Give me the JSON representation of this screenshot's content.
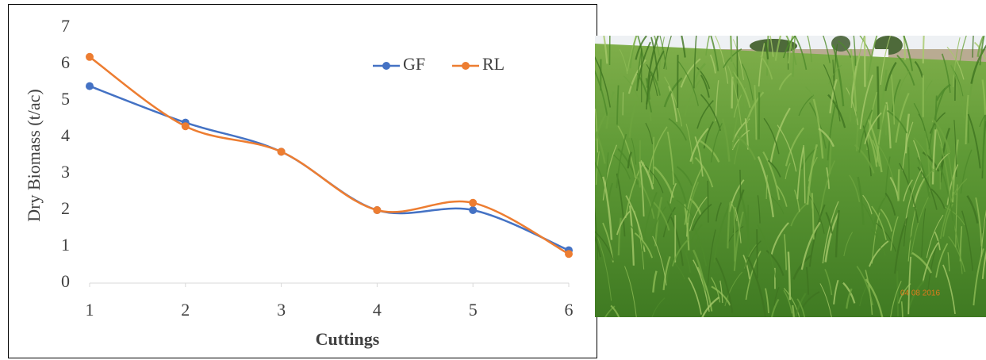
{
  "chart_data": {
    "type": "line",
    "x_label": "Cuttings",
    "y_label": "Dry Biomass (t/ac)",
    "x": [
      1,
      2,
      3,
      4,
      5,
      6
    ],
    "series": [
      {
        "name": "GF",
        "color": "#4472c4",
        "values": [
          5.4,
          4.4,
          3.6,
          2.0,
          2.0,
          0.9
        ]
      },
      {
        "name": "RL",
        "color": "#ed7d31",
        "values": [
          6.2,
          4.3,
          3.6,
          2.0,
          2.2,
          0.8
        ]
      }
    ],
    "xlim": [
      1,
      6
    ],
    "xticks": [
      1,
      2,
      3,
      4,
      5,
      6
    ],
    "ylim": [
      0,
      7
    ],
    "yticks": [
      0,
      1,
      2,
      3,
      4,
      5,
      6,
      7
    ],
    "grid": false,
    "smooth": true,
    "legend": "top-right"
  },
  "photo_stamp": "04 08 2016"
}
